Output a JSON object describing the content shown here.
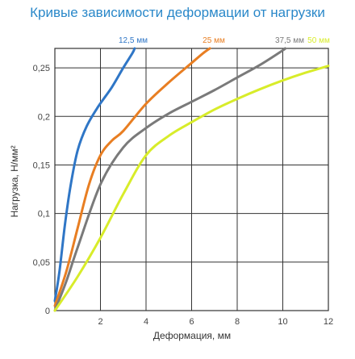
{
  "chart_data": {
    "type": "line",
    "title": "Кривые зависимости деформации от нагрузки",
    "xlabel": "Деформация, мм",
    "ylabel": "Нагрузка, Н/мм²",
    "xlim": [
      0,
      12
    ],
    "ylim": [
      0,
      0.27
    ],
    "x_ticks": [
      {
        "value": 0,
        "label": "0"
      },
      {
        "value": 2,
        "label": "2"
      },
      {
        "value": 4,
        "label": "4"
      },
      {
        "value": 6,
        "label": "6"
      },
      {
        "value": 8,
        "label": "8"
      },
      {
        "value": 10,
        "label": "10"
      },
      {
        "value": 12,
        "label": "12"
      }
    ],
    "y_ticks": [
      {
        "value": 0,
        "label": "0"
      },
      {
        "value": 0.05,
        "label": "0,05"
      },
      {
        "value": 0.1,
        "label": "0,1"
      },
      {
        "value": 0.15,
        "label": "0,15"
      },
      {
        "value": 0.2,
        "label": "0,2"
      },
      {
        "value": 0.25,
        "label": "0,25"
      }
    ],
    "grid": true,
    "legend": "top",
    "series": [
      {
        "name": "12,5 мм",
        "color": "#2f76c6",
        "points": [
          [
            0,
            0.01
          ],
          [
            0.2,
            0.04
          ],
          [
            0.45,
            0.09
          ],
          [
            0.7,
            0.13
          ],
          [
            1.0,
            0.165
          ],
          [
            1.4,
            0.19
          ],
          [
            1.9,
            0.21
          ],
          [
            2.5,
            0.23
          ],
          [
            3.0,
            0.25
          ],
          [
            3.4,
            0.265
          ],
          [
            3.5,
            0.27
          ]
        ]
      },
      {
        "name": "25 мм",
        "color": "#e87e22",
        "points": [
          [
            0,
            0.005
          ],
          [
            0.5,
            0.04
          ],
          [
            1.0,
            0.085
          ],
          [
            1.5,
            0.13
          ],
          [
            2.0,
            0.16
          ],
          [
            2.5,
            0.175
          ],
          [
            3.0,
            0.185
          ],
          [
            4.0,
            0.213
          ],
          [
            5.0,
            0.235
          ],
          [
            6.0,
            0.255
          ],
          [
            6.5,
            0.265
          ],
          [
            6.8,
            0.27
          ]
        ]
      },
      {
        "name": "37,5 мм",
        "color": "#7a7a7a",
        "points": [
          [
            0,
            0.0
          ],
          [
            0.5,
            0.03
          ],
          [
            1.0,
            0.065
          ],
          [
            2.0,
            0.13
          ],
          [
            3.0,
            0.168
          ],
          [
            4.0,
            0.188
          ],
          [
            5.0,
            0.203
          ],
          [
            6.0,
            0.215
          ],
          [
            7.0,
            0.227
          ],
          [
            8.0,
            0.24
          ],
          [
            9.0,
            0.253
          ],
          [
            10.0,
            0.268
          ],
          [
            10.1,
            0.27
          ]
        ]
      },
      {
        "name": "50 мм",
        "color": "#d8ec2a",
        "points": [
          [
            0,
            0.0
          ],
          [
            1.0,
            0.035
          ],
          [
            2.0,
            0.075
          ],
          [
            3.0,
            0.12
          ],
          [
            4.0,
            0.16
          ],
          [
            5.0,
            0.18
          ],
          [
            6.0,
            0.194
          ],
          [
            7.0,
            0.207
          ],
          [
            8.0,
            0.218
          ],
          [
            9.0,
            0.228
          ],
          [
            10.0,
            0.237
          ],
          [
            11.0,
            0.245
          ],
          [
            12.0,
            0.252
          ]
        ]
      }
    ]
  }
}
